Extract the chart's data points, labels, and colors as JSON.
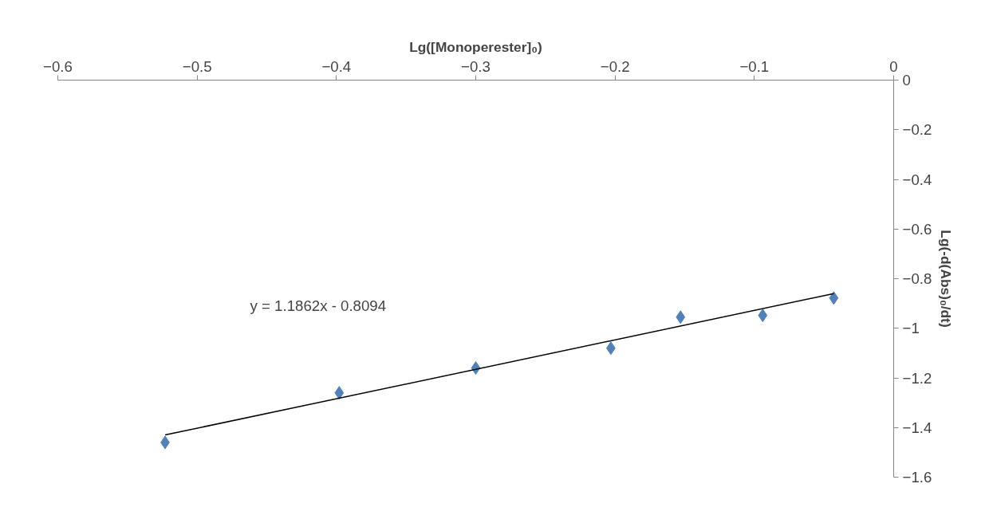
{
  "chart_data": {
    "type": "scatter",
    "xlabel": "Lg([Monoperester]₀)",
    "ylabel": "Lg(-d(Abs)₀/dt)",
    "x": [
      -0.523,
      -0.398,
      -0.3,
      -0.203,
      -0.153,
      -0.094,
      -0.043
    ],
    "series": [
      {
        "color": "#4f81bd",
        "values": [
          -1.46,
          -1.26,
          -1.16,
          -1.08,
          -0.955,
          -0.948,
          -0.878
        ],
        "marker": "diamond"
      },
      {
        "type": "line",
        "color": "#000000",
        "x": [
          -0.523,
          -0.043
        ],
        "values": [
          -1.43,
          -0.86
        ],
        "marker": "none",
        "line_style": "solid"
      }
    ],
    "xlim": [
      -0.6,
      0
    ],
    "ylim": [
      -1.6,
      0
    ],
    "xticks": [
      -0.6,
      -0.5,
      -0.4,
      -0.3,
      -0.2,
      -0.1,
      0
    ],
    "yticks": [
      -1.6,
      -1.4,
      -1.2,
      -1,
      -0.8,
      -0.6,
      -0.4,
      -0.2,
      0
    ],
    "grid": false,
    "annotations": [
      "y = 1.1862x - 0.8094"
    ]
  }
}
